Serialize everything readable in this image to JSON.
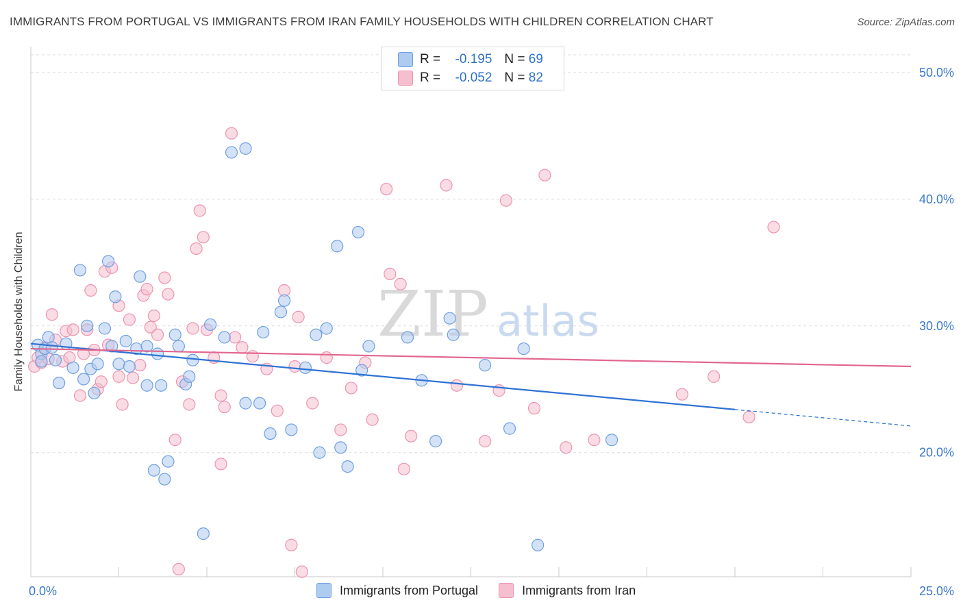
{
  "title": "IMMIGRANTS FROM PORTUGAL VS IMMIGRANTS FROM IRAN FAMILY HOUSEHOLDS WITH CHILDREN CORRELATION CHART",
  "source": "Source: ZipAtlas.com",
  "watermark": {
    "zip": "ZIP",
    "atlas": "atlas"
  },
  "legend_top": [
    {
      "r_label": "R =",
      "r_value": "-0.195",
      "n_label": "N =",
      "n_value": "69"
    },
    {
      "r_label": "R =",
      "r_value": "-0.052",
      "n_label": "N =",
      "n_value": "82"
    }
  ],
  "legend_bottom": [
    "Immigrants from Portugal",
    "Immigrants from Iran"
  ],
  "colors": {
    "portugal_fill": "#aecbf0",
    "portugal_stroke": "#6f9fe0",
    "portugal_line": "#2f72d4",
    "iran_fill": "#f6bfd0",
    "iran_stroke": "#ec93b0",
    "iran_line": "#e2678f",
    "axis_text": "#3a78c8",
    "grid": "#dedede"
  },
  "chart_data": {
    "type": "scatter",
    "title": "IMMIGRANTS FROM PORTUGAL VS IMMIGRANTS FROM IRAN FAMILY HOUSEHOLDS WITH CHILDREN CORRELATION CHART",
    "xlabel": "",
    "ylabel": "Family Households with Children",
    "xlim": [
      0,
      25
    ],
    "ylim": [
      10.2,
      51.4
    ],
    "x_tick_labels": [
      "0.0%",
      "25.0%"
    ],
    "y_ticks": [
      20,
      30,
      40,
      50
    ],
    "y_tick_labels": [
      "20.0%",
      "30.0%",
      "40.0%",
      "50.0%"
    ],
    "grid": true,
    "series": [
      {
        "name": "Immigrants from Portugal",
        "r": -0.195,
        "n": 69,
        "trend": {
          "x0": 0.0,
          "y0": 28.6,
          "x1": 20.0,
          "y1": 23.4,
          "dash_to_x": 25.0,
          "dash_to_y": 22.1
        },
        "points": [
          [
            0.2,
            28.5
          ],
          [
            0.3,
            27.8
          ],
          [
            0.4,
            28.2
          ],
          [
            0.5,
            29.1
          ],
          [
            0.6,
            28.3
          ],
          [
            0.7,
            27.3
          ],
          [
            0.8,
            25.5
          ],
          [
            1.0,
            28.6
          ],
          [
            1.2,
            26.7
          ],
          [
            1.4,
            34.4
          ],
          [
            1.5,
            25.8
          ],
          [
            1.6,
            30.0
          ],
          [
            1.7,
            26.6
          ],
          [
            1.8,
            24.7
          ],
          [
            1.9,
            27.0
          ],
          [
            2.1,
            29.8
          ],
          [
            2.2,
            35.1
          ],
          [
            2.3,
            28.4
          ],
          [
            2.4,
            32.3
          ],
          [
            2.5,
            27.0
          ],
          [
            2.7,
            28.8
          ],
          [
            2.8,
            26.8
          ],
          [
            3.0,
            28.2
          ],
          [
            3.1,
            33.9
          ],
          [
            3.3,
            28.4
          ],
          [
            3.3,
            25.3
          ],
          [
            3.5,
            18.6
          ],
          [
            3.6,
            27.8
          ],
          [
            3.7,
            25.3
          ],
          [
            3.8,
            17.9
          ],
          [
            3.9,
            19.3
          ],
          [
            4.1,
            29.3
          ],
          [
            4.2,
            28.4
          ],
          [
            4.4,
            25.4
          ],
          [
            4.5,
            26.0
          ],
          [
            4.6,
            27.3
          ],
          [
            4.9,
            13.6
          ],
          [
            5.1,
            30.1
          ],
          [
            5.5,
            29.1
          ],
          [
            5.7,
            43.7
          ],
          [
            6.1,
            44.0
          ],
          [
            6.1,
            23.9
          ],
          [
            6.5,
            23.9
          ],
          [
            6.6,
            29.5
          ],
          [
            6.8,
            21.5
          ],
          [
            7.1,
            31.1
          ],
          [
            7.2,
            32.0
          ],
          [
            7.4,
            21.8
          ],
          [
            7.8,
            26.7
          ],
          [
            8.1,
            29.3
          ],
          [
            8.2,
            20.0
          ],
          [
            8.4,
            29.8
          ],
          [
            8.7,
            36.3
          ],
          [
            8.8,
            20.4
          ],
          [
            9.0,
            18.9
          ],
          [
            9.3,
            37.4
          ],
          [
            9.4,
            26.5
          ],
          [
            9.6,
            28.4
          ],
          [
            10.7,
            29.1
          ],
          [
            11.1,
            25.7
          ],
          [
            11.5,
            20.9
          ],
          [
            11.9,
            30.6
          ],
          [
            12.0,
            29.3
          ],
          [
            12.9,
            26.9
          ],
          [
            13.6,
            21.9
          ],
          [
            14.0,
            28.2
          ],
          [
            14.4,
            12.7
          ],
          [
            16.5,
            21.0
          ],
          [
            0.3,
            27.2
          ]
        ]
      },
      {
        "name": "Immigrants from Iran",
        "r": -0.052,
        "n": 82,
        "trend": {
          "x0": 0.0,
          "y0": 28.2,
          "x1": 25.0,
          "y1": 26.8
        },
        "points": [
          [
            0.1,
            26.8
          ],
          [
            0.2,
            27.5
          ],
          [
            0.3,
            27.1
          ],
          [
            0.4,
            28.3
          ],
          [
            0.5,
            27.4
          ],
          [
            0.6,
            30.9
          ],
          [
            0.7,
            28.9
          ],
          [
            0.9,
            27.2
          ],
          [
            1.0,
            29.6
          ],
          [
            1.1,
            27.5
          ],
          [
            1.2,
            29.7
          ],
          [
            1.4,
            24.5
          ],
          [
            1.5,
            27.8
          ],
          [
            1.6,
            29.7
          ],
          [
            1.7,
            32.8
          ],
          [
            1.8,
            28.1
          ],
          [
            1.9,
            25.0
          ],
          [
            2.0,
            25.6
          ],
          [
            2.1,
            34.3
          ],
          [
            2.2,
            28.5
          ],
          [
            2.3,
            34.6
          ],
          [
            2.5,
            26.0
          ],
          [
            2.5,
            31.6
          ],
          [
            2.6,
            23.8
          ],
          [
            2.8,
            30.5
          ],
          [
            2.9,
            25.9
          ],
          [
            3.1,
            26.9
          ],
          [
            3.2,
            32.4
          ],
          [
            3.3,
            32.9
          ],
          [
            3.4,
            29.9
          ],
          [
            3.5,
            30.8
          ],
          [
            3.6,
            29.3
          ],
          [
            3.8,
            33.8
          ],
          [
            3.9,
            32.5
          ],
          [
            4.1,
            21.0
          ],
          [
            4.2,
            10.8
          ],
          [
            4.3,
            25.6
          ],
          [
            4.5,
            23.8
          ],
          [
            4.6,
            29.8
          ],
          [
            4.7,
            36.1
          ],
          [
            4.8,
            39.1
          ],
          [
            4.9,
            37.0
          ],
          [
            5.0,
            29.7
          ],
          [
            5.2,
            27.5
          ],
          [
            5.4,
            19.1
          ],
          [
            5.4,
            24.5
          ],
          [
            5.5,
            23.6
          ],
          [
            5.7,
            45.2
          ],
          [
            5.8,
            29.1
          ],
          [
            6.0,
            28.3
          ],
          [
            6.3,
            27.6
          ],
          [
            6.7,
            26.6
          ],
          [
            7.0,
            23.3
          ],
          [
            7.2,
            32.8
          ],
          [
            7.4,
            12.7
          ],
          [
            7.5,
            26.8
          ],
          [
            7.6,
            30.7
          ],
          [
            7.7,
            10.6
          ],
          [
            8.0,
            23.9
          ],
          [
            8.4,
            27.5
          ],
          [
            8.8,
            21.8
          ],
          [
            9.1,
            25.1
          ],
          [
            9.5,
            27.1
          ],
          [
            9.7,
            22.6
          ],
          [
            10.1,
            40.8
          ],
          [
            10.2,
            34.1
          ],
          [
            10.5,
            33.3
          ],
          [
            10.6,
            18.7
          ],
          [
            10.8,
            21.3
          ],
          [
            11.8,
            41.1
          ],
          [
            12.1,
            25.3
          ],
          [
            12.9,
            20.9
          ],
          [
            13.3,
            24.9
          ],
          [
            13.5,
            39.9
          ],
          [
            14.3,
            23.5
          ],
          [
            14.6,
            41.9
          ],
          [
            15.2,
            20.4
          ],
          [
            16.0,
            21.0
          ],
          [
            18.5,
            24.6
          ],
          [
            19.4,
            26.0
          ],
          [
            20.4,
            22.8
          ],
          [
            21.1,
            37.8
          ]
        ]
      }
    ]
  }
}
